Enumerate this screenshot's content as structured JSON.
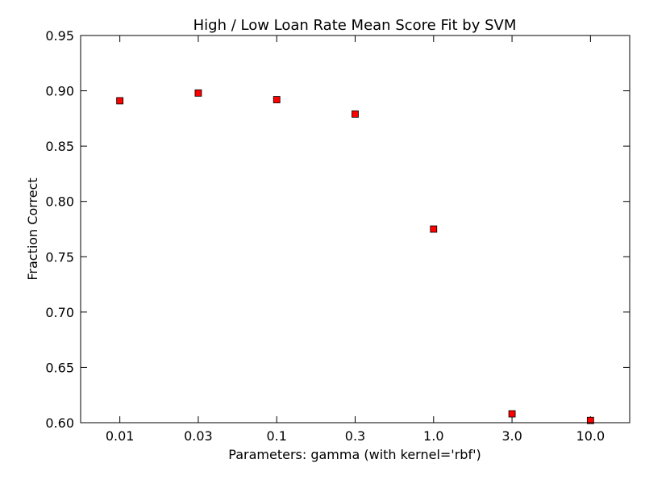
{
  "chart_data": {
    "type": "scatter",
    "title": "High / Low Loan Rate Mean Score Fit by SVM",
    "xlabel": "Parameters: gamma (with kernel='rbf')",
    "ylabel": "Fraction Correct",
    "categories": [
      "0.01",
      "0.03",
      "0.1",
      "0.3",
      "1.0",
      "3.0",
      "10.0"
    ],
    "series": [
      {
        "values": [
          0.891,
          0.898,
          0.892,
          0.879,
          0.775,
          0.608,
          0.602
        ]
      }
    ],
    "ylim": [
      0.6,
      0.95
    ],
    "yticks": [
      "0.60",
      "0.65",
      "0.70",
      "0.75",
      "0.80",
      "0.85",
      "0.90",
      "0.95"
    ],
    "grid": false,
    "legend": "none",
    "marker": "square",
    "marker_color": "#ff0000",
    "marker_edge_color": "#000000"
  }
}
